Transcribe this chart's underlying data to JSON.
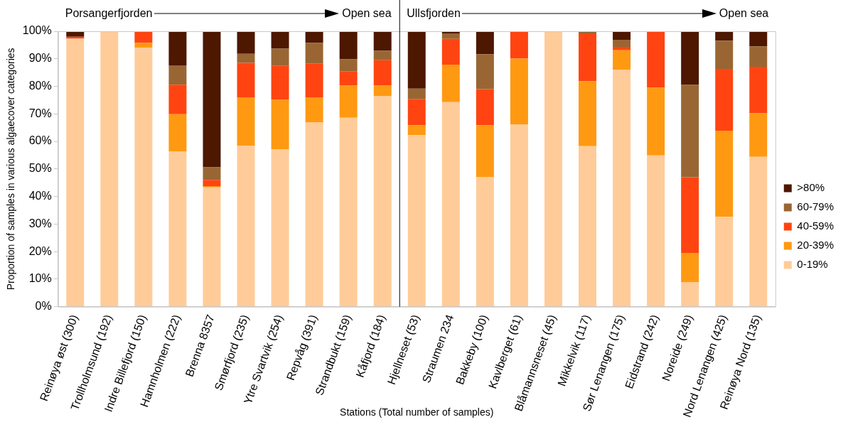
{
  "chart_data": {
    "type": "bar",
    "stacked": true,
    "categories": [
      "Reinøya øst (300)",
      "Trollholmsund (192)",
      "Indre Billefjord (150)",
      "Hamnholmen (222)",
      "Brenna 8357",
      "Smørfjord (235)",
      "Ytre Svartvik (254)",
      "Repvåg (391)",
      "Strandbukt (159)",
      "Kåfjord (184)",
      "Hjellneset (53)",
      "Straumen 234",
      "Bakkeby (100)",
      "Kavlberget (61)",
      "Blåmannsneset (45)",
      "Mikkelvik (117)",
      "Sør Lenangen (175)",
      "Eidstrand (242)",
      "Noreide (249)",
      "Nord Lenangen (425)",
      "Reinøya Nord (135)"
    ],
    "series": [
      {
        "name": "0-19%",
        "color": "#ffcc99",
        "values": [
          97.3,
          100,
          94.0,
          56.4,
          43.3,
          58.5,
          57.1,
          67.0,
          68.6,
          76.5,
          62.3,
          74.3,
          47.0,
          66.2,
          100,
          58.3,
          86.1,
          54.9,
          8.8,
          32.6,
          54.4
        ]
      },
      {
        "name": "20-39%",
        "color": "#ff9912",
        "values": [
          0,
          0,
          1.8,
          13.5,
          0.5,
          17.5,
          18.0,
          9.0,
          11.7,
          3.8,
          3.6,
          13.6,
          18.9,
          23.9,
          0,
          23.6,
          7.0,
          24.6,
          10.7,
          31.3,
          15.8
        ]
      },
      {
        "name": "40-59%",
        "color": "#ff4411",
        "values": [
          0.7,
          0,
          4.2,
          10.7,
          2.2,
          12.5,
          12.3,
          12.3,
          5.2,
          9.2,
          9.5,
          9.3,
          13.1,
          9.9,
          0,
          17.3,
          1.2,
          20.5,
          27.5,
          22.4,
          16.9
        ]
      },
      {
        "name": "60-79%",
        "color": "#996633",
        "values": [
          0,
          0,
          0,
          7.0,
          4.6,
          3.3,
          6.3,
          7.5,
          4.3,
          3.4,
          3.8,
          2.0,
          12.7,
          0,
          0,
          0.8,
          2.6,
          0,
          33.5,
          10.3,
          7.4
        ]
      },
      {
        "name": ">80%",
        "color": "#4d1700",
        "values": [
          2.0,
          0,
          0,
          12.4,
          49.4,
          8.2,
          6.3,
          4.2,
          10.2,
          7.1,
          20.8,
          0.8,
          8.3,
          0,
          0,
          0,
          3.1,
          0,
          19.5,
          3.4,
          5.5
        ]
      }
    ],
    "ylim": [
      0,
      100
    ],
    "yticks": [
      {
        "value": 0,
        "label": "0%"
      },
      {
        "value": 10,
        "label": "10%"
      },
      {
        "value": 20,
        "label": "20%"
      },
      {
        "value": 30,
        "label": "30%"
      },
      {
        "value": 40,
        "label": "40%"
      },
      {
        "value": 50,
        "label": "50%"
      },
      {
        "value": 60,
        "label": "60%"
      },
      {
        "value": 70,
        "label": "70%"
      },
      {
        "value": 80,
        "label": "80%"
      },
      {
        "value": 90,
        "label": "90%"
      },
      {
        "value": 100,
        "label": "100%"
      }
    ],
    "xlabel": "Stations (Total number of samples)",
    "ylabel": "Proportion of samples in various algaecover categories",
    "legend": "right",
    "grid": false,
    "annotations": [
      "Porsangerfjorden",
      "Open sea",
      "Ullsfjorden",
      "Open sea"
    ]
  }
}
